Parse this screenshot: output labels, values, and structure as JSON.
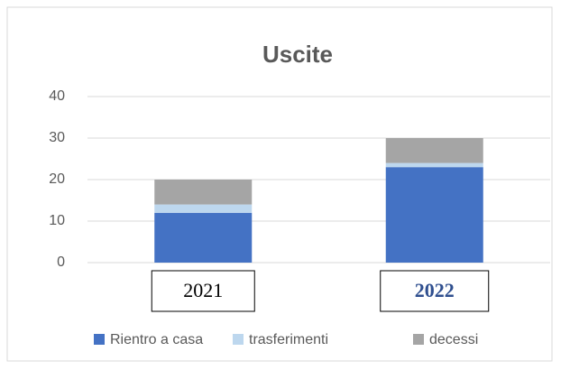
{
  "chart_data": {
    "type": "stacked_bar",
    "title": "Uscite",
    "categories": [
      "2021",
      "2022"
    ],
    "series": [
      {
        "name": "Rientro a casa",
        "color": "#4472c4",
        "values": [
          12,
          23
        ]
      },
      {
        "name": "trasferimenti",
        "color": "#bdd7ee",
        "values": [
          2,
          1
        ]
      },
      {
        "name": "decessi",
        "color": "#a5a5a5",
        "values": [
          6,
          6
        ]
      }
    ],
    "ylim": [
      0,
      40
    ],
    "yticks": [
      0,
      10,
      20,
      30,
      40
    ],
    "grid": true,
    "legend": "bottom"
  }
}
